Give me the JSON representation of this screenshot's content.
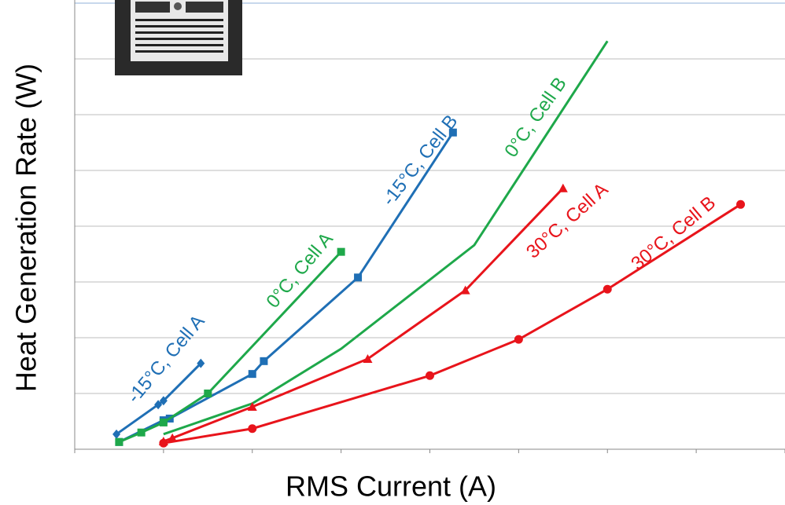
{
  "chart_data": {
    "type": "line",
    "x_label": "RMS Current (A)",
    "y_label": "Heat Generation Rate (W)",
    "xlim": [
      0,
      8
    ],
    "ylim": [
      0,
      8
    ],
    "xticks": [
      0,
      1,
      2,
      3,
      4,
      5,
      6,
      7,
      8
    ],
    "yticks": [
      0,
      1,
      2,
      3,
      4,
      5,
      6,
      7,
      8
    ],
    "grid": true,
    "series": [
      {
        "name": "-15°C, Cell A",
        "color": "#1f6fb5",
        "marker": "diamond",
        "x": [
          0.47,
          0.94,
          1.0,
          1.42
        ],
        "values": [
          0.27,
          0.8,
          0.87,
          1.54
        ]
      },
      {
        "name": "-15°C, Cell B",
        "color": "#1f6fb5",
        "marker": "square",
        "x": [
          0.5,
          1.0,
          1.07,
          2.0,
          2.13,
          3.19,
          4.26
        ],
        "values": [
          0.13,
          0.52,
          0.55,
          1.35,
          1.58,
          3.08,
          5.68
        ]
      },
      {
        "name": "0°C, Cell A",
        "color": "#1ea84a",
        "marker": "square",
        "x": [
          0.5,
          0.75,
          1.0,
          1.5,
          3.0
        ],
        "values": [
          0.13,
          0.3,
          0.48,
          1.0,
          3.54
        ]
      },
      {
        "name": "0°C, Cell B",
        "color": "#1ea84a",
        "marker": "none",
        "x": [
          1,
          2,
          3,
          4.5,
          6
        ],
        "values": [
          0.27,
          0.82,
          1.8,
          3.66,
          7.32
        ]
      },
      {
        "name": "30°C, Cell A",
        "color": "#e8141b",
        "marker": "triangle",
        "x": [
          1,
          1.1,
          2,
          3.3,
          4.4,
          5.5
        ],
        "values": [
          0.14,
          0.2,
          0.76,
          1.62,
          2.85,
          4.68
        ]
      },
      {
        "name": "30°C, Cell B",
        "color": "#e8141b",
        "marker": "circle",
        "x": [
          1,
          2,
          4,
          5,
          6,
          7.5
        ],
        "values": [
          0.11,
          0.37,
          1.32,
          1.97,
          2.87,
          4.39
        ]
      }
    ]
  }
}
